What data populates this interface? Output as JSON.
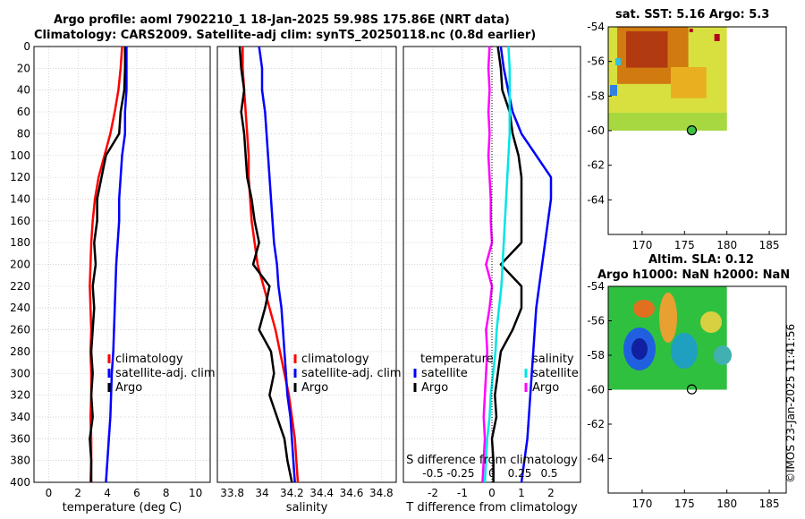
{
  "titles": {
    "line1": "Argo profile: aoml 7902210_1 18-Jan-2025 59.98S 175.86E (NRT data)",
    "line2": "Climatology: CARS2009. Satellite-adj clim: synTS_20250118.nc (0.8d earlier)",
    "sst_map": "sat. SST: 5.16 Argo: 5.3",
    "sla_map_line1": "Altim. SLA: 0.12",
    "sla_map_line2": "Argo h1000: NaN h2000: NaN"
  },
  "stamp": "©IMOS 23-Jan-2025 11:41:56",
  "colors": {
    "climatology": "#ff0000",
    "satellite": "#0000ff",
    "argo": "#000000",
    "sal_sat": "#00e5e5",
    "sal_clim": "#ff00ff"
  },
  "chart_data": [
    {
      "type": "line",
      "name": "temperature-profile",
      "xlabel": "temperature (deg C)",
      "ylabel": "",
      "xlim": [
        -1,
        11
      ],
      "ylim": [
        400,
        0
      ],
      "xticks": [
        "0",
        "2",
        "4",
        "6",
        "8",
        "10"
      ],
      "yticks": [
        "0",
        "20",
        "40",
        "60",
        "80",
        "100",
        "120",
        "140",
        "160",
        "180",
        "200",
        "220",
        "240",
        "260",
        "280",
        "300",
        "320",
        "340",
        "360",
        "380",
        "400"
      ],
      "legend": [
        "climatology",
        "satellite-adj. clim",
        "Argo"
      ],
      "series": [
        {
          "name": "climatology",
          "x": [
            5.0,
            4.9,
            4.75,
            4.5,
            4.2,
            3.8,
            3.4,
            3.15,
            3.0,
            2.9,
            2.85,
            2.8,
            2.85,
            2.9,
            2.85,
            2.9,
            2.9,
            2.85,
            2.9,
            2.9,
            2.85
          ],
          "y": [
            0,
            20,
            40,
            60,
            80,
            100,
            120,
            140,
            160,
            180,
            200,
            220,
            240,
            260,
            280,
            300,
            320,
            340,
            360,
            380,
            400
          ]
        },
        {
          "name": "satellite-adj. clim",
          "x": [
            5.3,
            5.3,
            5.3,
            5.2,
            5.2,
            5.0,
            4.9,
            4.8,
            4.8,
            4.7,
            4.6,
            4.55,
            4.5,
            4.45,
            4.4,
            4.3,
            4.25,
            4.2,
            4.1,
            4.0,
            3.9
          ],
          "y": [
            0,
            20,
            40,
            60,
            80,
            100,
            120,
            140,
            160,
            180,
            200,
            220,
            240,
            260,
            280,
            300,
            320,
            340,
            360,
            380,
            400
          ]
        },
        {
          "name": "Argo",
          "x": [
            5.2,
            5.2,
            5.15,
            4.9,
            4.8,
            3.9,
            3.6,
            3.3,
            3.3,
            3.1,
            3.2,
            3.0,
            3.1,
            3.0,
            2.9,
            3.0,
            2.9,
            3.0,
            2.8,
            2.9,
            2.9
          ],
          "y": [
            0,
            20,
            40,
            60,
            80,
            100,
            120,
            140,
            160,
            180,
            200,
            220,
            240,
            260,
            280,
            300,
            320,
            340,
            360,
            380,
            400
          ]
        }
      ]
    },
    {
      "type": "line",
      "name": "salinity-profile",
      "xlabel": "salinity",
      "xlim": [
        33.7,
        34.9
      ],
      "ylim": [
        400,
        0
      ],
      "xticks": [
        "33.8",
        "34",
        "34.2",
        "34.4",
        "34.6",
        "34.8"
      ],
      "legend": [
        "climatology",
        "satellite-adj. clim",
        "Argo"
      ],
      "series": [
        {
          "name": "climatology",
          "x": [
            33.87,
            33.87,
            33.88,
            33.89,
            33.9,
            33.91,
            33.91,
            33.92,
            33.93,
            33.95,
            33.97,
            34.01,
            34.05,
            34.09,
            34.12,
            34.15,
            34.18,
            34.2,
            34.22,
            34.23,
            34.24
          ],
          "y": [
            0,
            20,
            40,
            60,
            80,
            100,
            120,
            140,
            160,
            180,
            200,
            220,
            240,
            260,
            280,
            300,
            320,
            340,
            360,
            380,
            400
          ]
        },
        {
          "name": "satellite-adj. clim",
          "x": [
            33.98,
            34.0,
            34.0,
            34.02,
            34.03,
            34.04,
            34.05,
            34.06,
            34.07,
            34.08,
            34.1,
            34.11,
            34.13,
            34.14,
            34.15,
            34.16,
            34.17,
            34.19,
            34.2,
            34.21,
            34.22
          ],
          "y": [
            0,
            20,
            40,
            60,
            80,
            100,
            120,
            140,
            160,
            180,
            200,
            220,
            240,
            260,
            280,
            300,
            320,
            340,
            360,
            380,
            400
          ]
        },
        {
          "name": "Argo",
          "x": [
            33.85,
            33.86,
            33.88,
            33.86,
            33.88,
            33.89,
            33.9,
            33.93,
            33.95,
            33.98,
            33.94,
            34.05,
            34.02,
            33.98,
            34.06,
            34.08,
            34.05,
            34.1,
            34.15,
            34.17,
            34.2
          ],
          "y": [
            0,
            20,
            40,
            60,
            80,
            100,
            120,
            140,
            160,
            180,
            200,
            220,
            240,
            260,
            280,
            300,
            320,
            340,
            360,
            380,
            400
          ]
        }
      ]
    },
    {
      "type": "line",
      "name": "difference-profile",
      "xlabel": "T difference from climatology",
      "xlabel_top": "S difference from climatology",
      "xlim": [
        -3,
        3
      ],
      "ylim": [
        400,
        0
      ],
      "xticks": [
        "-2",
        "-1",
        "0",
        "1",
        "2"
      ],
      "xticks_top": [
        "-0.5",
        "-0.25",
        "0",
        "0.25",
        "0.5"
      ],
      "legend_left": [
        "temperature",
        "satellite",
        "Argo"
      ],
      "legend_right": [
        "salinity",
        "satellite",
        "Argo"
      ],
      "series": [
        {
          "name": "T satellite",
          "x": [
            0.3,
            0.4,
            0.55,
            0.7,
            1.0,
            1.5,
            2.0,
            2.0,
            1.9,
            1.8,
            1.7,
            1.6,
            1.5,
            1.45,
            1.4,
            1.35,
            1.3,
            1.25,
            1.2,
            1.1,
            1.0
          ],
          "y": [
            0,
            20,
            40,
            60,
            80,
            100,
            120,
            140,
            160,
            180,
            200,
            220,
            240,
            260,
            280,
            300,
            320,
            340,
            360,
            380,
            400
          ]
        },
        {
          "name": "T Argo",
          "x": [
            0.2,
            0.3,
            0.35,
            0.6,
            0.7,
            0.9,
            1.0,
            1.0,
            1.0,
            1.0,
            0.3,
            1.0,
            1.0,
            0.7,
            0.3,
            0.2,
            0.1,
            0.15,
            0.0,
            0.05,
            0.05
          ],
          "y": [
            0,
            20,
            40,
            60,
            80,
            100,
            120,
            140,
            160,
            180,
            200,
            220,
            240,
            260,
            280,
            300,
            320,
            340,
            360,
            380,
            400
          ]
        },
        {
          "name": "S satellite",
          "x": [
            0.14,
            0.15,
            0.15,
            0.15,
            0.15,
            0.14,
            0.13,
            0.12,
            0.11,
            0.1,
            0.09,
            0.08,
            0.06,
            0.04,
            0.03,
            0.01,
            -0.01,
            -0.02,
            -0.04,
            -0.05,
            -0.06
          ],
          "y": [
            0,
            20,
            40,
            60,
            80,
            100,
            120,
            140,
            160,
            180,
            200,
            220,
            240,
            260,
            280,
            300,
            320,
            340,
            360,
            380,
            400
          ]
        },
        {
          "name": "S Argo",
          "x": [
            -0.02,
            -0.03,
            -0.02,
            -0.03,
            -0.02,
            -0.03,
            -0.02,
            -0.01,
            -0.01,
            0.0,
            -0.05,
            0.0,
            -0.02,
            -0.05,
            -0.04,
            -0.05,
            -0.06,
            -0.07,
            -0.06,
            -0.07,
            -0.08
          ],
          "y": [
            0,
            20,
            40,
            60,
            80,
            100,
            120,
            140,
            160,
            180,
            200,
            220,
            240,
            260,
            280,
            300,
            320,
            340,
            360,
            380,
            400
          ]
        }
      ]
    },
    {
      "type": "heatmap",
      "name": "sst-map",
      "title": "sat. SST: 5.16 Argo: 5.3",
      "xlim": [
        166,
        187
      ],
      "ylim": [
        -66,
        -54
      ],
      "xticks": [
        "170",
        "175",
        "180",
        "185"
      ],
      "yticks": [
        "-54",
        "-56",
        "-58",
        "-60",
        "-62",
        "-64"
      ],
      "argo_position": [
        175.86,
        -59.98
      ]
    },
    {
      "type": "heatmap",
      "name": "sla-map",
      "title": "Altim. SLA: 0.12",
      "xlim": [
        166,
        187
      ],
      "ylim": [
        -66,
        -54
      ],
      "xticks": [
        "170",
        "175",
        "180",
        "185"
      ],
      "yticks": [
        "-54",
        "-56",
        "-58",
        "-60",
        "-62",
        "-64"
      ],
      "argo_position": [
        175.86,
        -59.98
      ]
    }
  ]
}
